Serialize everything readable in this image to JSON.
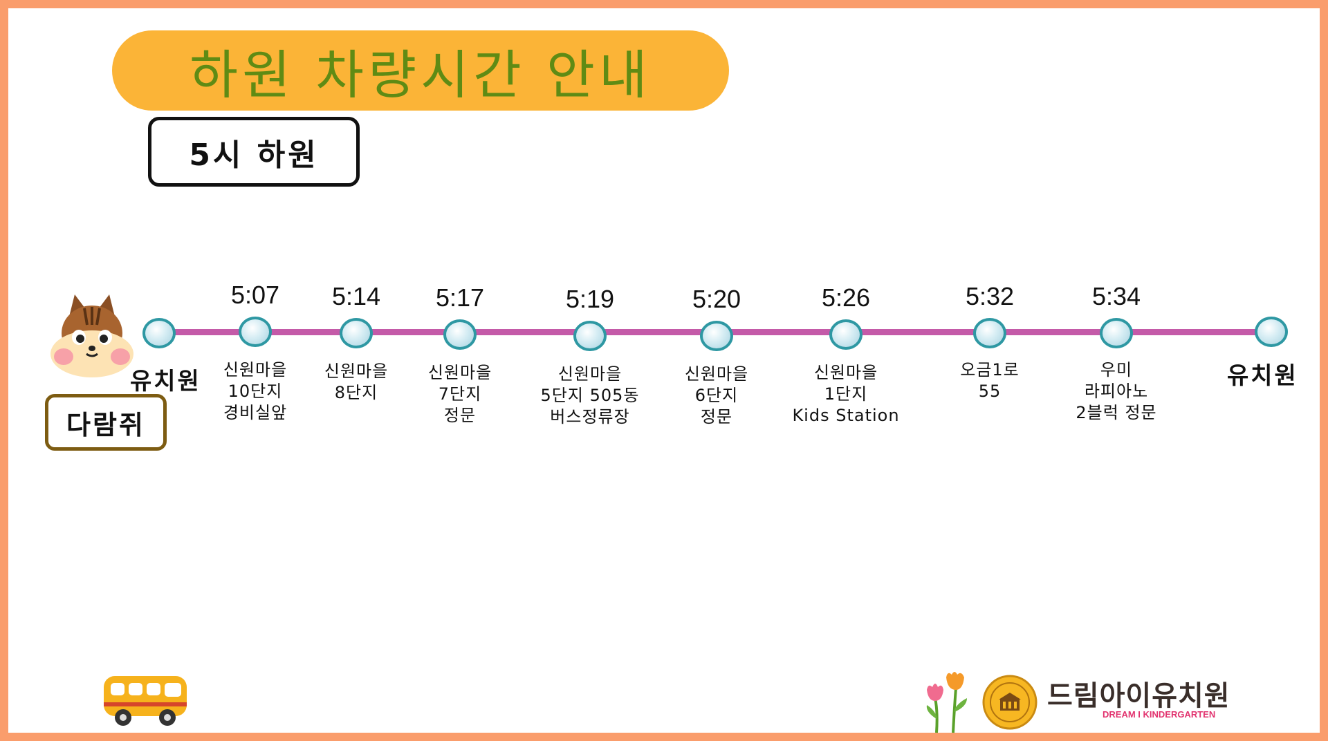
{
  "title": "하원 차량시간 안내",
  "session": "5시 하원",
  "class_name": "다람쥐",
  "start_label": "유치원",
  "end_label": "유치원",
  "colors": {
    "frame": "#fa9d6c",
    "banner": "#fbb437",
    "title_text": "#5f8b14",
    "route_line": "#c45aa8",
    "stop_border": "#2e98a3",
    "class_border": "#7d5c12"
  },
  "stops": [
    {
      "time": "5:07",
      "label": "신원마을\n10단지\n경비실앞"
    },
    {
      "time": "5:14",
      "label": "신원마을\n8단지"
    },
    {
      "time": "5:17",
      "label": "신원마을\n7단지\n정문"
    },
    {
      "time": "5:19",
      "label": "신원마을\n5단지 505동\n버스정류장"
    },
    {
      "time": "5:20",
      "label": "신원마을\n6단지\n정문"
    },
    {
      "time": "5:26",
      "label": "신원마을\n1단지\nKids Station"
    },
    {
      "time": "5:32",
      "label": "오금1로\n55"
    },
    {
      "time": "5:34",
      "label": "우미\n라피아노\n2블럭 정문"
    }
  ],
  "icons": {
    "mascot": "squirrel-icon",
    "bus": "bus-icon",
    "flower": "tulip-icon",
    "emblem": "school-emblem-icon"
  },
  "logo": {
    "korean": "드림아이유치원",
    "english": "DREAM I KINDERGARTEN"
  }
}
